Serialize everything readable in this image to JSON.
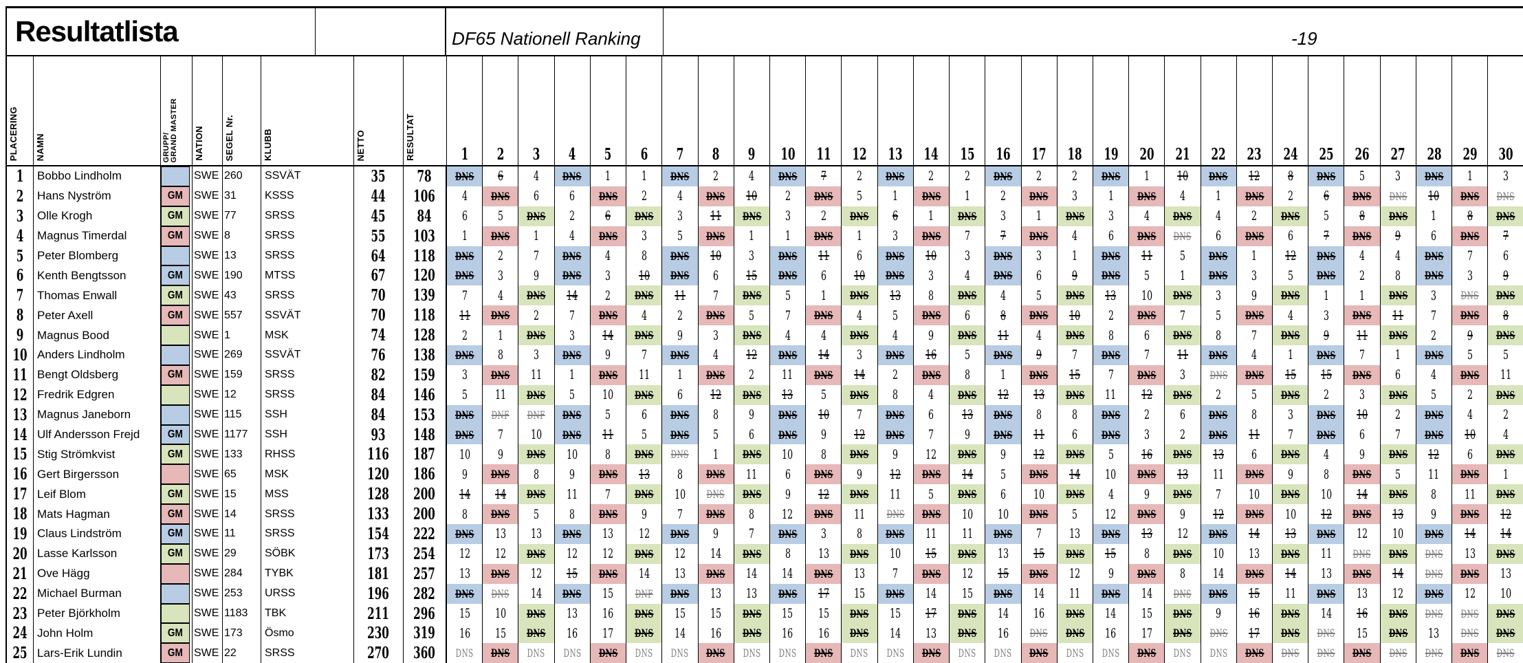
{
  "title": "Resultatlista",
  "subtitle": "DF65 Nationell Ranking",
  "year_suffix": "-19",
  "columns": {
    "place": "PLACERING",
    "name": "NAMN",
    "gm": "GRUPP/\nGRAND MASTER",
    "nation": "NATION",
    "sail": "SEGEL Nr.",
    "club": "KLUBB",
    "netto": "NETTO",
    "resultat": "RESULTAT"
  },
  "race_numbers": [
    1,
    2,
    3,
    4,
    5,
    6,
    7,
    8,
    9,
    10,
    11,
    12,
    13,
    14,
    15,
    16,
    17,
    18,
    19,
    20,
    21,
    22,
    23,
    24,
    25,
    26,
    27,
    28,
    29,
    30
  ],
  "colors": {
    "group_blue": "#b8cce4",
    "group_red": "#e6b8b7",
    "group_green": "#d8e4bc",
    "muted_text": "#7e7e7e"
  },
  "value_legend": {
    "did_not_start": "DNS",
    "did_not_finish": "DNF"
  },
  "rows": [
    {
      "place": 1,
      "name": "Bobbo Lindholm",
      "gm": "",
      "group": "b",
      "nation": "SWE",
      "sail": "260",
      "club": "SSVÄT",
      "netto": 35,
      "resultat": 78,
      "races": [
        "DNS*b",
        "6*",
        "4",
        "DNS*b",
        "1",
        "1",
        "DNS*b",
        "2",
        "4",
        "DNS*b",
        "7*",
        "2",
        "DNS*b",
        "2",
        "2",
        "DNS*b",
        "2",
        "2",
        "DNS*b",
        "1",
        "10*",
        "DNS*b",
        "12*",
        "8*",
        "DNS*b",
        "5",
        "3",
        "DNS*b",
        "1",
        "3"
      ]
    },
    {
      "place": 2,
      "name": "Hans Nyström",
      "gm": "GM",
      "group": "r",
      "nation": "SWE",
      "sail": "31",
      "club": "KSSS",
      "netto": 44,
      "resultat": 106,
      "races": [
        "4",
        "DNS*r",
        "6",
        "6",
        "DNS*r",
        "2",
        "4",
        "DNS*r",
        "10*",
        "2",
        "DNS*r",
        "5",
        "1",
        "DNS*r",
        "1",
        "2",
        "DNS*r",
        "3",
        "1",
        "DNS*r",
        "4",
        "1",
        "DNS*r",
        "2",
        "6*",
        "DNS*r",
        "DNS*",
        "10*",
        "DNS*r",
        "DNS*"
      ]
    },
    {
      "place": 3,
      "name": "Olle Krogh",
      "gm": "GM",
      "group": "g",
      "nation": "SWE",
      "sail": "77",
      "club": "SRSS",
      "netto": 45,
      "resultat": 84,
      "races": [
        "6",
        "5",
        "DNS*g",
        "2",
        "6*",
        "DNS*g",
        "3",
        "11*",
        "DNS*g",
        "3",
        "2",
        "DNS*g",
        "6*",
        "1",
        "DNS*g",
        "3",
        "1",
        "DNS*g",
        "3",
        "4",
        "DNS*g",
        "4",
        "2",
        "DNS*g",
        "5",
        "8*",
        "DNS*g",
        "1",
        "8*",
        "DNS*g"
      ]
    },
    {
      "place": 4,
      "name": "Magnus Timerdal",
      "gm": "GM",
      "group": "r",
      "nation": "SWE",
      "sail": "8",
      "club": "SRSS",
      "netto": 55,
      "resultat": 103,
      "races": [
        "1",
        "DNS*r",
        "1",
        "4",
        "DNS*r",
        "3",
        "5",
        "DNS*r",
        "1",
        "1",
        "DNS*r",
        "1",
        "3",
        "DNS*r",
        "7",
        "7*",
        "DNS*r",
        "4",
        "6",
        "DNS*r",
        "DNS*",
        "6",
        "DNS*r",
        "6",
        "7*",
        "DNS*r",
        "9*",
        "6",
        "DNS*r",
        "7*"
      ]
    },
    {
      "place": 5,
      "name": "Peter Blomberg",
      "gm": "",
      "group": "b",
      "nation": "SWE",
      "sail": "13",
      "club": "SRSS",
      "netto": 64,
      "resultat": 118,
      "races": [
        "DNS*b",
        "2",
        "7",
        "DNS*b",
        "4",
        "8",
        "DNS*b",
        "10*",
        "3",
        "DNS*b",
        "11*",
        "6",
        "DNS*b",
        "10*",
        "3",
        "DNS*b",
        "3",
        "1",
        "DNS*b",
        "11*",
        "5",
        "DNS*b",
        "1",
        "12*",
        "DNS*b",
        "4",
        "4",
        "DNS*b",
        "7",
        "6"
      ]
    },
    {
      "place": 6,
      "name": "Kenth Bengtsson",
      "gm": "GM",
      "group": "b",
      "nation": "SWE",
      "sail": "190",
      "club": "MTSS",
      "netto": 67,
      "resultat": 120,
      "races": [
        "DNS*b",
        "3",
        "9",
        "DNS*b",
        "3",
        "10*",
        "DNS*b",
        "6",
        "15*",
        "DNS*b",
        "6",
        "10*",
        "DNS*b",
        "3",
        "4",
        "DNS*b",
        "6",
        "9*",
        "DNS*b",
        "5",
        "1",
        "DNS*b",
        "3",
        "5",
        "DNS*b",
        "2",
        "8",
        "DNS*b",
        "3",
        "9*"
      ]
    },
    {
      "place": 7,
      "name": "Thomas Enwall",
      "gm": "GM",
      "group": "g",
      "nation": "SWE",
      "sail": "43",
      "club": "SRSS",
      "netto": 70,
      "resultat": 139,
      "races": [
        "7",
        "4",
        "DNS*g",
        "14*",
        "2",
        "DNS*g",
        "11*",
        "7",
        "DNS*g",
        "5",
        "1",
        "DNS*g",
        "13*",
        "8",
        "DNS*g",
        "4",
        "5",
        "DNS*g",
        "13*",
        "10",
        "DNS*g",
        "3",
        "9",
        "DNS*g",
        "1",
        "1",
        "DNS*g",
        "3",
        "DNS*",
        "DNS*g"
      ]
    },
    {
      "place": 8,
      "name": "Peter Axell",
      "gm": "GM",
      "group": "r",
      "nation": "SWE",
      "sail": "557",
      "club": "SSVÄT",
      "netto": 70,
      "resultat": 118,
      "races": [
        "11*",
        "DNS*r",
        "2",
        "7",
        "DNS*r",
        "4",
        "2",
        "DNS*r",
        "5",
        "7",
        "DNS*r",
        "4",
        "5",
        "DNS*r",
        "6",
        "8*",
        "DNS*r",
        "10*",
        "2",
        "DNS*r",
        "7",
        "5",
        "DNS*r",
        "4",
        "3",
        "DNS*r",
        "11*",
        "7",
        "DNS*r",
        "8*"
      ]
    },
    {
      "place": 9,
      "name": "Magnus Bood",
      "gm": "",
      "group": "g",
      "nation": "SWE",
      "sail": "1",
      "club": "MSK",
      "netto": 74,
      "resultat": 128,
      "races": [
        "2",
        "1",
        "DNS*g",
        "3",
        "14*",
        "DNS*g",
        "9",
        "3",
        "DNS*g",
        "4",
        "4",
        "DNS*g",
        "4",
        "9",
        "DNS*g",
        "11*",
        "4",
        "DNS*g",
        "8",
        "6",
        "DNS*g",
        "8",
        "7",
        "DNS*g",
        "9*",
        "11*",
        "DNS*g",
        "2",
        "9*",
        "DNS*g"
      ]
    },
    {
      "place": 10,
      "name": "Anders Lindholm",
      "gm": "",
      "group": "b",
      "nation": "SWE",
      "sail": "269",
      "club": "SSVÄT",
      "netto": 76,
      "resultat": 138,
      "races": [
        "DNS*b",
        "8",
        "3",
        "DNS*b",
        "9",
        "7",
        "DNS*b",
        "4",
        "12*",
        "DNS*b",
        "14*",
        "3",
        "DNS*b",
        "16*",
        "5",
        "DNS*b",
        "9*",
        "7",
        "DNS*b",
        "7",
        "11*",
        "DNS*b",
        "4",
        "1",
        "DNS*b",
        "7",
        "1",
        "DNS*b",
        "5",
        "5"
      ]
    },
    {
      "place": 11,
      "name": "Bengt Oldsberg",
      "gm": "GM",
      "group": "r",
      "nation": "SWE",
      "sail": "159",
      "club": "SRSS",
      "netto": 82,
      "resultat": 159,
      "races": [
        "3",
        "DNS*r",
        "11",
        "1",
        "DNS*r",
        "11",
        "1",
        "DNS*r",
        "2",
        "11",
        "DNS*r",
        "14*",
        "2",
        "DNS*r",
        "8",
        "1",
        "DNS*r",
        "15*",
        "7",
        "DNS*r",
        "3",
        "DNS*",
        "DNS*r",
        "15*",
        "15*",
        "DNS*r",
        "6",
        "4",
        "DNS*r",
        "11"
      ]
    },
    {
      "place": 12,
      "name": "Fredrik Edgren",
      "gm": "",
      "group": "g",
      "nation": "SWE",
      "sail": "12",
      "club": "SRSS",
      "netto": 84,
      "resultat": 146,
      "races": [
        "5",
        "11",
        "DNS*g",
        "5",
        "10",
        "DNS*g",
        "6",
        "12*",
        "DNS*g",
        "13*",
        "5",
        "DNS*g",
        "8",
        "4",
        "DNS*g",
        "12*",
        "13*",
        "DNS*g",
        "11",
        "12*",
        "DNS*g",
        "2",
        "5",
        "DNS*g",
        "2",
        "3",
        "DNS*g",
        "5",
        "2",
        "DNS*g"
      ]
    },
    {
      "place": 13,
      "name": "Magnus Janeborn",
      "gm": "",
      "group": "b",
      "nation": "SWE",
      "sail": "115",
      "club": "SSH",
      "netto": 84,
      "resultat": 153,
      "races": [
        "DNS*b",
        "DNF*",
        "DNF*",
        "DNS*b",
        "5",
        "6",
        "DNS*b",
        "8",
        "9",
        "DNS*b",
        "10*",
        "7",
        "DNS*b",
        "6",
        "13*",
        "DNS*b",
        "8",
        "8",
        "DNS*b",
        "2",
        "6",
        "DNS*b",
        "8",
        "3",
        "DNS*b",
        "10*",
        "2",
        "DNS*b",
        "4",
        "2"
      ]
    },
    {
      "place": 14,
      "name": "Ulf Andersson Frejd",
      "gm": "GM",
      "group": "b",
      "nation": "SWE",
      "sail": "1177",
      "club": "SSH",
      "netto": 93,
      "resultat": 148,
      "races": [
        "DNS*b",
        "7",
        "10",
        "DNS*b",
        "11*",
        "5",
        "DNS*b",
        "5",
        "6",
        "DNS*b",
        "9",
        "12*",
        "DNS*b",
        "7",
        "9",
        "DNS*b",
        "11*",
        "6",
        "DNS*b",
        "3",
        "2",
        "DNS*b",
        "11*",
        "7",
        "DNS*b",
        "6",
        "7",
        "DNS*b",
        "10*",
        "4"
      ]
    },
    {
      "place": 15,
      "name": "Stig Strömkvist",
      "gm": "GM",
      "group": "g",
      "nation": "SWE",
      "sail": "133",
      "club": "RHSS",
      "netto": 116,
      "resultat": 187,
      "races": [
        "10",
        "9",
        "DNS*g",
        "10",
        "8",
        "DNS*g",
        "DNS*",
        "1",
        "DNS*g",
        "10",
        "8",
        "DNS*g",
        "9",
        "12",
        "DNS*g",
        "9",
        "12*",
        "DNS*g",
        "5",
        "16*",
        "DNS*g",
        "13*",
        "6",
        "DNS*g",
        "4",
        "9",
        "DNS*g",
        "12*",
        "6",
        "DNS*g"
      ]
    },
    {
      "place": 16,
      "name": "Gert Birgersson",
      "gm": "",
      "group": "r",
      "nation": "SWE",
      "sail": "65",
      "club": "MSK",
      "netto": 120,
      "resultat": 186,
      "races": [
        "9",
        "DNS*r",
        "8",
        "9",
        "DNS*r",
        "13*",
        "8",
        "DNS*r",
        "11",
        "6",
        "DNS*r",
        "9",
        "12*",
        "DNS*r",
        "14*",
        "5",
        "DNS*r",
        "14*",
        "10",
        "DNS*r",
        "13*",
        "11",
        "DNS*r",
        "9",
        "8",
        "DNS*r",
        "5",
        "11",
        "DNS*r",
        "1"
      ]
    },
    {
      "place": 17,
      "name": "Leif Blom",
      "gm": "GM",
      "group": "g",
      "nation": "SWE",
      "sail": "15",
      "club": "MSS",
      "netto": 128,
      "resultat": 200,
      "races": [
        "14*",
        "14*",
        "DNS*g",
        "11",
        "7",
        "DNS*g",
        "10",
        "DNS*",
        "DNS*g",
        "9",
        "12*",
        "DNS*g",
        "11",
        "5",
        "DNS*g",
        "6",
        "10",
        "DNS*g",
        "4",
        "9",
        "DNS*g",
        "7",
        "10",
        "DNS*g",
        "10",
        "14*",
        "DNS*g",
        "8",
        "11",
        "DNS*g"
      ]
    },
    {
      "place": 18,
      "name": "Mats Hagman",
      "gm": "GM",
      "group": "r",
      "nation": "SWE",
      "sail": "14",
      "club": "SRSS",
      "netto": 133,
      "resultat": 200,
      "races": [
        "8",
        "DNS*r",
        "5",
        "8",
        "DNS*r",
        "9",
        "7",
        "DNS*r",
        "8",
        "12",
        "DNS*r",
        "11",
        "DNS*",
        "DNS*r",
        "10",
        "10",
        "DNS*r",
        "5",
        "12",
        "DNS*r",
        "9",
        "12*",
        "DNS*r",
        "10",
        "12*",
        "DNS*r",
        "13*",
        "9",
        "DNS*r",
        "12*"
      ]
    },
    {
      "place": 19,
      "name": "Claus Lindström",
      "gm": "GM",
      "group": "b",
      "nation": "SWE",
      "sail": "11",
      "club": "SRSS",
      "netto": 154,
      "resultat": 222,
      "races": [
        "DNS*b",
        "13",
        "13",
        "DNS*b",
        "13",
        "12",
        "DNS*b",
        "9",
        "7",
        "DNS*b",
        "3",
        "8",
        "DNS*b",
        "11",
        "11",
        "DNS*b",
        "7",
        "13",
        "DNS*b",
        "13*",
        "12",
        "DNS*b",
        "14*",
        "13*",
        "DNS*b",
        "12",
        "10",
        "DNS*b",
        "14*",
        "14*"
      ]
    },
    {
      "place": 20,
      "name": "Lasse Karlsson",
      "gm": "GM",
      "group": "g",
      "nation": "SWE",
      "sail": "29",
      "club": "SÖBK",
      "netto": 173,
      "resultat": 254,
      "races": [
        "12",
        "12",
        "DNS*g",
        "12",
        "12",
        "DNS*g",
        "12",
        "14",
        "DNS*g",
        "8",
        "13",
        "DNS*g",
        "10",
        "15*",
        "DNS*g",
        "13",
        "15*",
        "DNS*g",
        "15*",
        "8",
        "DNS*g",
        "10",
        "13",
        "DNS*g",
        "11",
        "DNS*",
        "DNS*g",
        "DNS*",
        "13",
        "DNS*g"
      ]
    },
    {
      "place": 21,
      "name": "Ove Hägg",
      "gm": "",
      "group": "r",
      "nation": "SWE",
      "sail": "284",
      "club": "TYBK",
      "netto": 181,
      "resultat": 257,
      "races": [
        "13",
        "DNS*r",
        "12",
        "15*",
        "DNS*r",
        "14",
        "13",
        "DNS*r",
        "14",
        "14",
        "DNS*r",
        "13",
        "7",
        "DNS*r",
        "12",
        "15*",
        "DNS*r",
        "12",
        "9",
        "DNS*r",
        "8",
        "14",
        "DNS*r",
        "14*",
        "13",
        "DNS*r",
        "14*",
        "DNS*",
        "DNS*r",
        "13"
      ]
    },
    {
      "place": 22,
      "name": "Michael Burman",
      "gm": "",
      "group": "b",
      "nation": "SWE",
      "sail": "253",
      "club": "URSS",
      "netto": 196,
      "resultat": 282,
      "races": [
        "DNS*b",
        "DNS*",
        "14",
        "DNS*b",
        "15",
        "DNF*",
        "DNS*b",
        "13",
        "13",
        "DNS*b",
        "17*",
        "15",
        "DNS*b",
        "14",
        "15",
        "DNS*b",
        "14",
        "11",
        "DNS*b",
        "14",
        "DNS*",
        "DNS*b",
        "15*",
        "11",
        "DNS*b",
        "13",
        "12",
        "DNS*b",
        "12",
        "10"
      ]
    },
    {
      "place": 23,
      "name": "Peter Björkholm",
      "gm": "",
      "group": "g",
      "nation": "SWE",
      "sail": "1183",
      "club": "TBK",
      "netto": 211,
      "resultat": 296,
      "races": [
        "15",
        "10",
        "DNS*g",
        "13",
        "16",
        "DNS*g",
        "15",
        "15",
        "DNS*g",
        "15",
        "15",
        "DNS*g",
        "15",
        "17*",
        "DNS*g",
        "14",
        "16",
        "DNS*g",
        "14",
        "15",
        "DNS*g",
        "9",
        "16*",
        "DNS*g",
        "14",
        "16*",
        "DNS*g",
        "DNS*",
        "DNS*",
        "DNS*g"
      ]
    },
    {
      "place": 24,
      "name": "John Holm",
      "gm": "GM",
      "group": "g",
      "nation": "SWE",
      "sail": "173",
      "club": "Ösmo",
      "netto": 230,
      "resultat": 319,
      "races": [
        "16",
        "15",
        "DNS*g",
        "16",
        "17",
        "DNS*g",
        "14",
        "16",
        "DNS*g",
        "16",
        "16",
        "DNS*g",
        "14",
        "13",
        "DNS*g",
        "16",
        "DNS*",
        "DNS*g",
        "16",
        "17",
        "DNS*g",
        "DNS*",
        "17*",
        "DNS*g",
        "DNS*",
        "15",
        "DNS*g",
        "13",
        "DNS*",
        "DNS*g"
      ]
    },
    {
      "place": 25,
      "name": "Lars-Erik Lundin",
      "gm": "GM",
      "group": "r",
      "nation": "SWE",
      "sail": "22",
      "club": "SRSS",
      "netto": 270,
      "resultat": 360,
      "races": [
        "DNS",
        "DNS*r",
        "DNS",
        "DNS",
        "DNS*r",
        "DNS",
        "DNS",
        "DNS*r",
        "DNS",
        "DNS",
        "DNS*r",
        "DNS",
        "DNS",
        "DNS*r",
        "DNS",
        "DNS",
        "DNS*r",
        "DNS",
        "DNS",
        "DNS*r",
        "DNS",
        "DNS",
        "DNS*r",
        "DNS*",
        "DNS*",
        "DNS*r",
        "DNS*",
        "DNS*",
        "DNS*r",
        "DNS*"
      ]
    }
  ]
}
